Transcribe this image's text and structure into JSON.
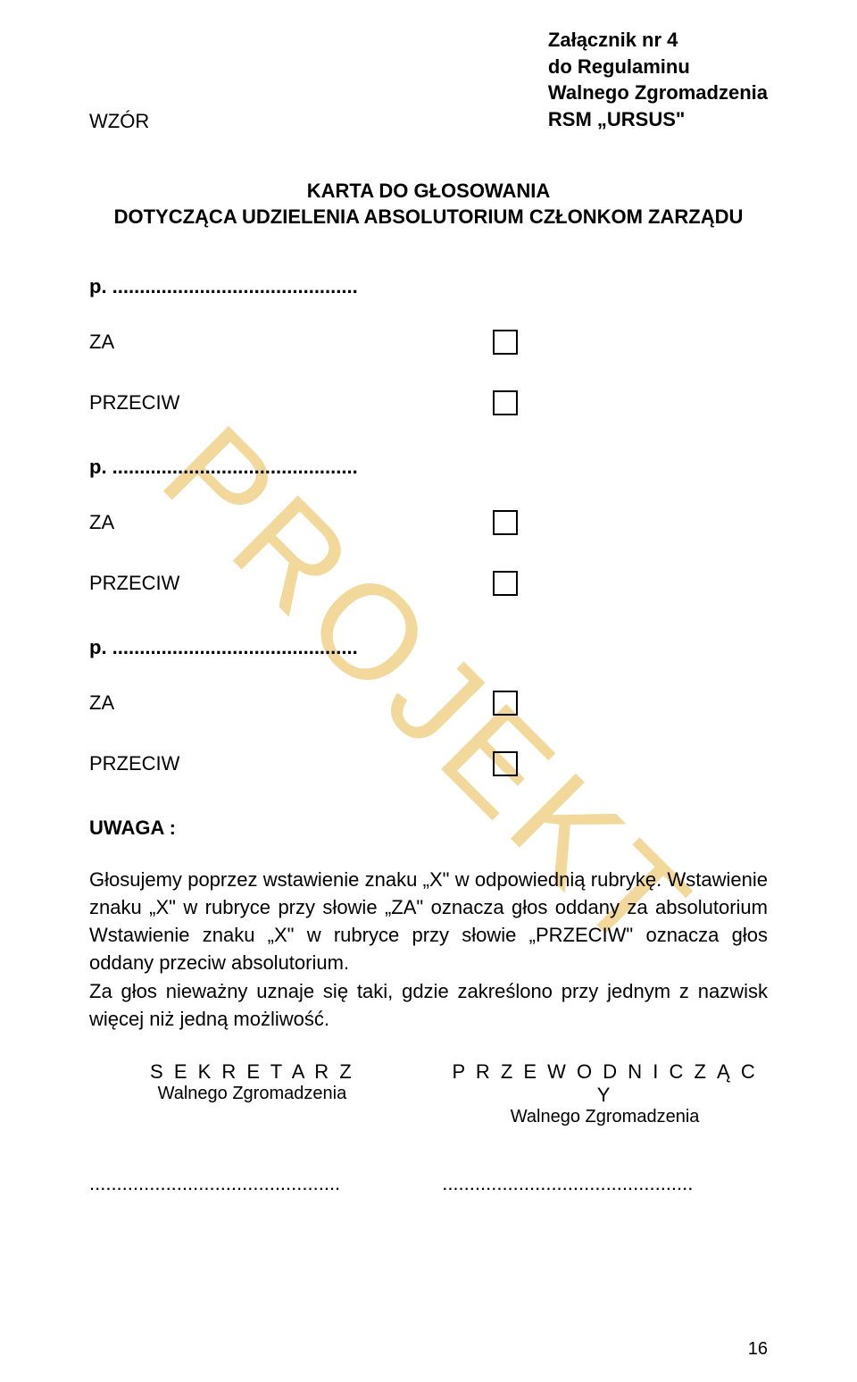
{
  "watermark_text": "PROJEKT",
  "wzor_label": "WZÓR",
  "header": {
    "line1": "Załącznik nr 4",
    "line2": "do Regulaminu",
    "line3": "Walnego Zgromadzenia",
    "line4": "RSM „URSUS\""
  },
  "title": {
    "line1": "KARTA DO GŁOSOWANIA",
    "line2": "DOTYCZĄCA UDZIELENIA ABSOLUTORIUM CZŁONKOM ZARZĄDU"
  },
  "groups": [
    {
      "p_label": "p. .............................................",
      "za_label": "ZA",
      "przeciw_label": "PRZECIW"
    },
    {
      "p_label": "p. .............................................",
      "za_label": "ZA",
      "przeciw_label": "PRZECIW"
    },
    {
      "p_label": "p. .............................................",
      "za_label": "ZA",
      "przeciw_label": "PRZECIW"
    }
  ],
  "uwaga_label": "UWAGA :",
  "para1": "Głosujemy poprzez wstawienie znaku „X\" w odpowiednią rubrykę. Wstawienie znaku „X\" w rubryce przy słowie „ZA\" oznacza głos oddany za absolutorium Wstawienie znaku „X\" w rubryce przy słowie „PRZECIW\" oznacza głos oddany przeciw absolutorium.",
  "para2": "Za głos nieważny uznaje się taki, gdzie zakreślono przy jednym z nazwisk więcej niż jedną możliwość.",
  "sig": {
    "left_title": "S E K R E T A R Z",
    "left_sub": "Walnego Zgromadzenia",
    "right_title": "P R Z E W O D N I C Z Ą C Y",
    "right_sub": "Walnego Zgromadzenia"
  },
  "dots": "..............................................",
  "page_number": "16",
  "colors": {
    "watermark": "#f2d89a",
    "text": "#000000",
    "background": "#ffffff"
  }
}
